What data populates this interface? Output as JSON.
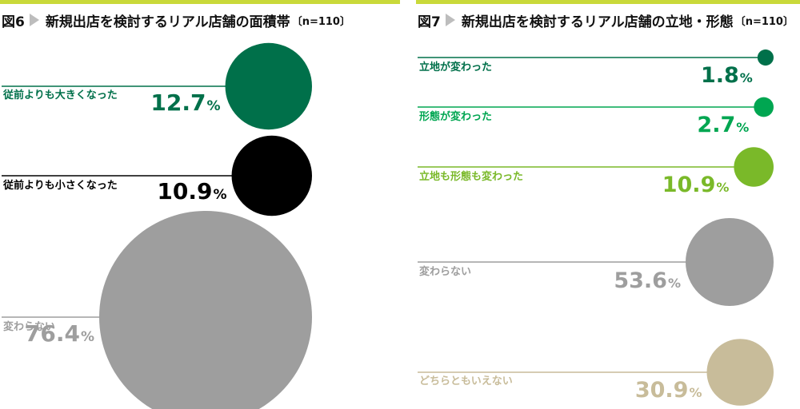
{
  "figures": [
    {
      "fig_num": "図6",
      "title": "新規出店を検討するリアル店舗の面積帯",
      "note": "〔n=110〕"
    },
    {
      "fig_num": "図7",
      "title": "新規出店を検討するリアル店舗の立地・形態",
      "note": "〔n=110〕"
    }
  ],
  "chart_data": [
    {
      "type": "bubble",
      "title": "図6 新規出店を検討するリアル店舗の面積帯〔n=110〕",
      "unit": "%",
      "series": [
        {
          "label": "従前よりも大きくなった",
          "value": 12.7,
          "color": "#00704a"
        },
        {
          "label": "従前よりも小さくなった",
          "value": 10.9,
          "color": "#000000"
        },
        {
          "label": "変わらない",
          "value": 76.4,
          "color": "#9e9e9e"
        }
      ]
    },
    {
      "type": "bubble",
      "title": "図7 新規出店を検討するリアル店舗の立地・形態〔n=110〕",
      "unit": "%",
      "series": [
        {
          "label": "立地が変わった",
          "value": 1.8,
          "color": "#00704a"
        },
        {
          "label": "形態が変わった",
          "value": 2.7,
          "color": "#00a651"
        },
        {
          "label": "立地も形態も変わった",
          "value": 10.9,
          "color": "#7ab929"
        },
        {
          "label": "変わらない",
          "value": 53.6,
          "color": "#9e9e9e"
        },
        {
          "label": "どちらともいえない",
          "value": 30.9,
          "color": "#c8bc9a"
        }
      ]
    }
  ]
}
